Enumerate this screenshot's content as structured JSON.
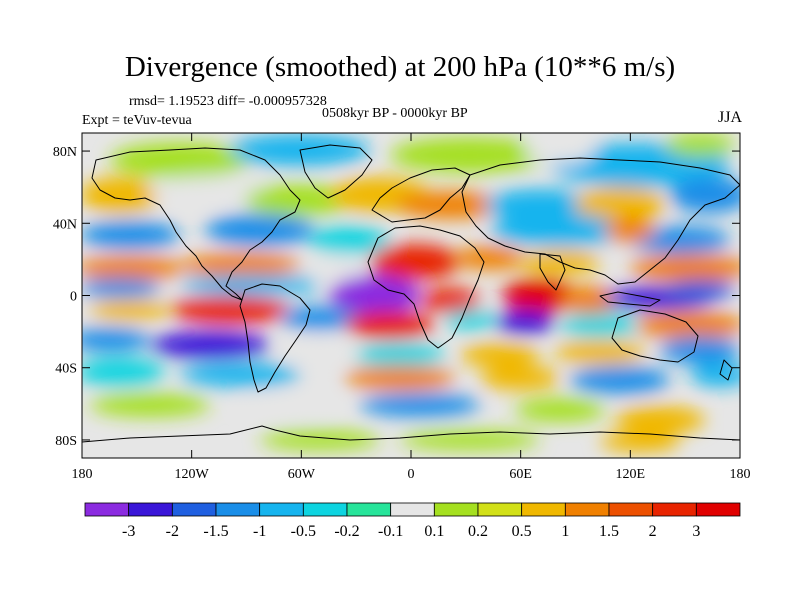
{
  "title": "Divergence (smoothed) at 200 hPa (10**6 m/s)",
  "stats": "rmsd= 1.19523 diff= -0.000957328",
  "expt": "Expt = teVuv-tevua",
  "period": "0508kyr BP - 0000kyr BP",
  "season": "JJA",
  "lat_ticks": [
    "80N",
    "40N",
    "0",
    "40S",
    "80S"
  ],
  "lon_ticks": [
    "180",
    "120W",
    "60W",
    "0",
    "60E",
    "120E",
    "180"
  ],
  "colorbar": {
    "labels": [
      "-3",
      "-2",
      "-1.5",
      "-1",
      "-0.5",
      "-0.2",
      "-0.1",
      "0.1",
      "0.2",
      "0.5",
      "1",
      "1.5",
      "2",
      "3"
    ],
    "colors": [
      "#8b2be0",
      "#3a16d8",
      "#1f5fe0",
      "#1a8ee8",
      "#16b4ee",
      "#0dd4e0",
      "#27e49a",
      "#e6e6e6",
      "#a5e020",
      "#d2e018",
      "#f0b800",
      "#f08000",
      "#ec5000",
      "#e82400",
      "#e00000"
    ]
  }
}
